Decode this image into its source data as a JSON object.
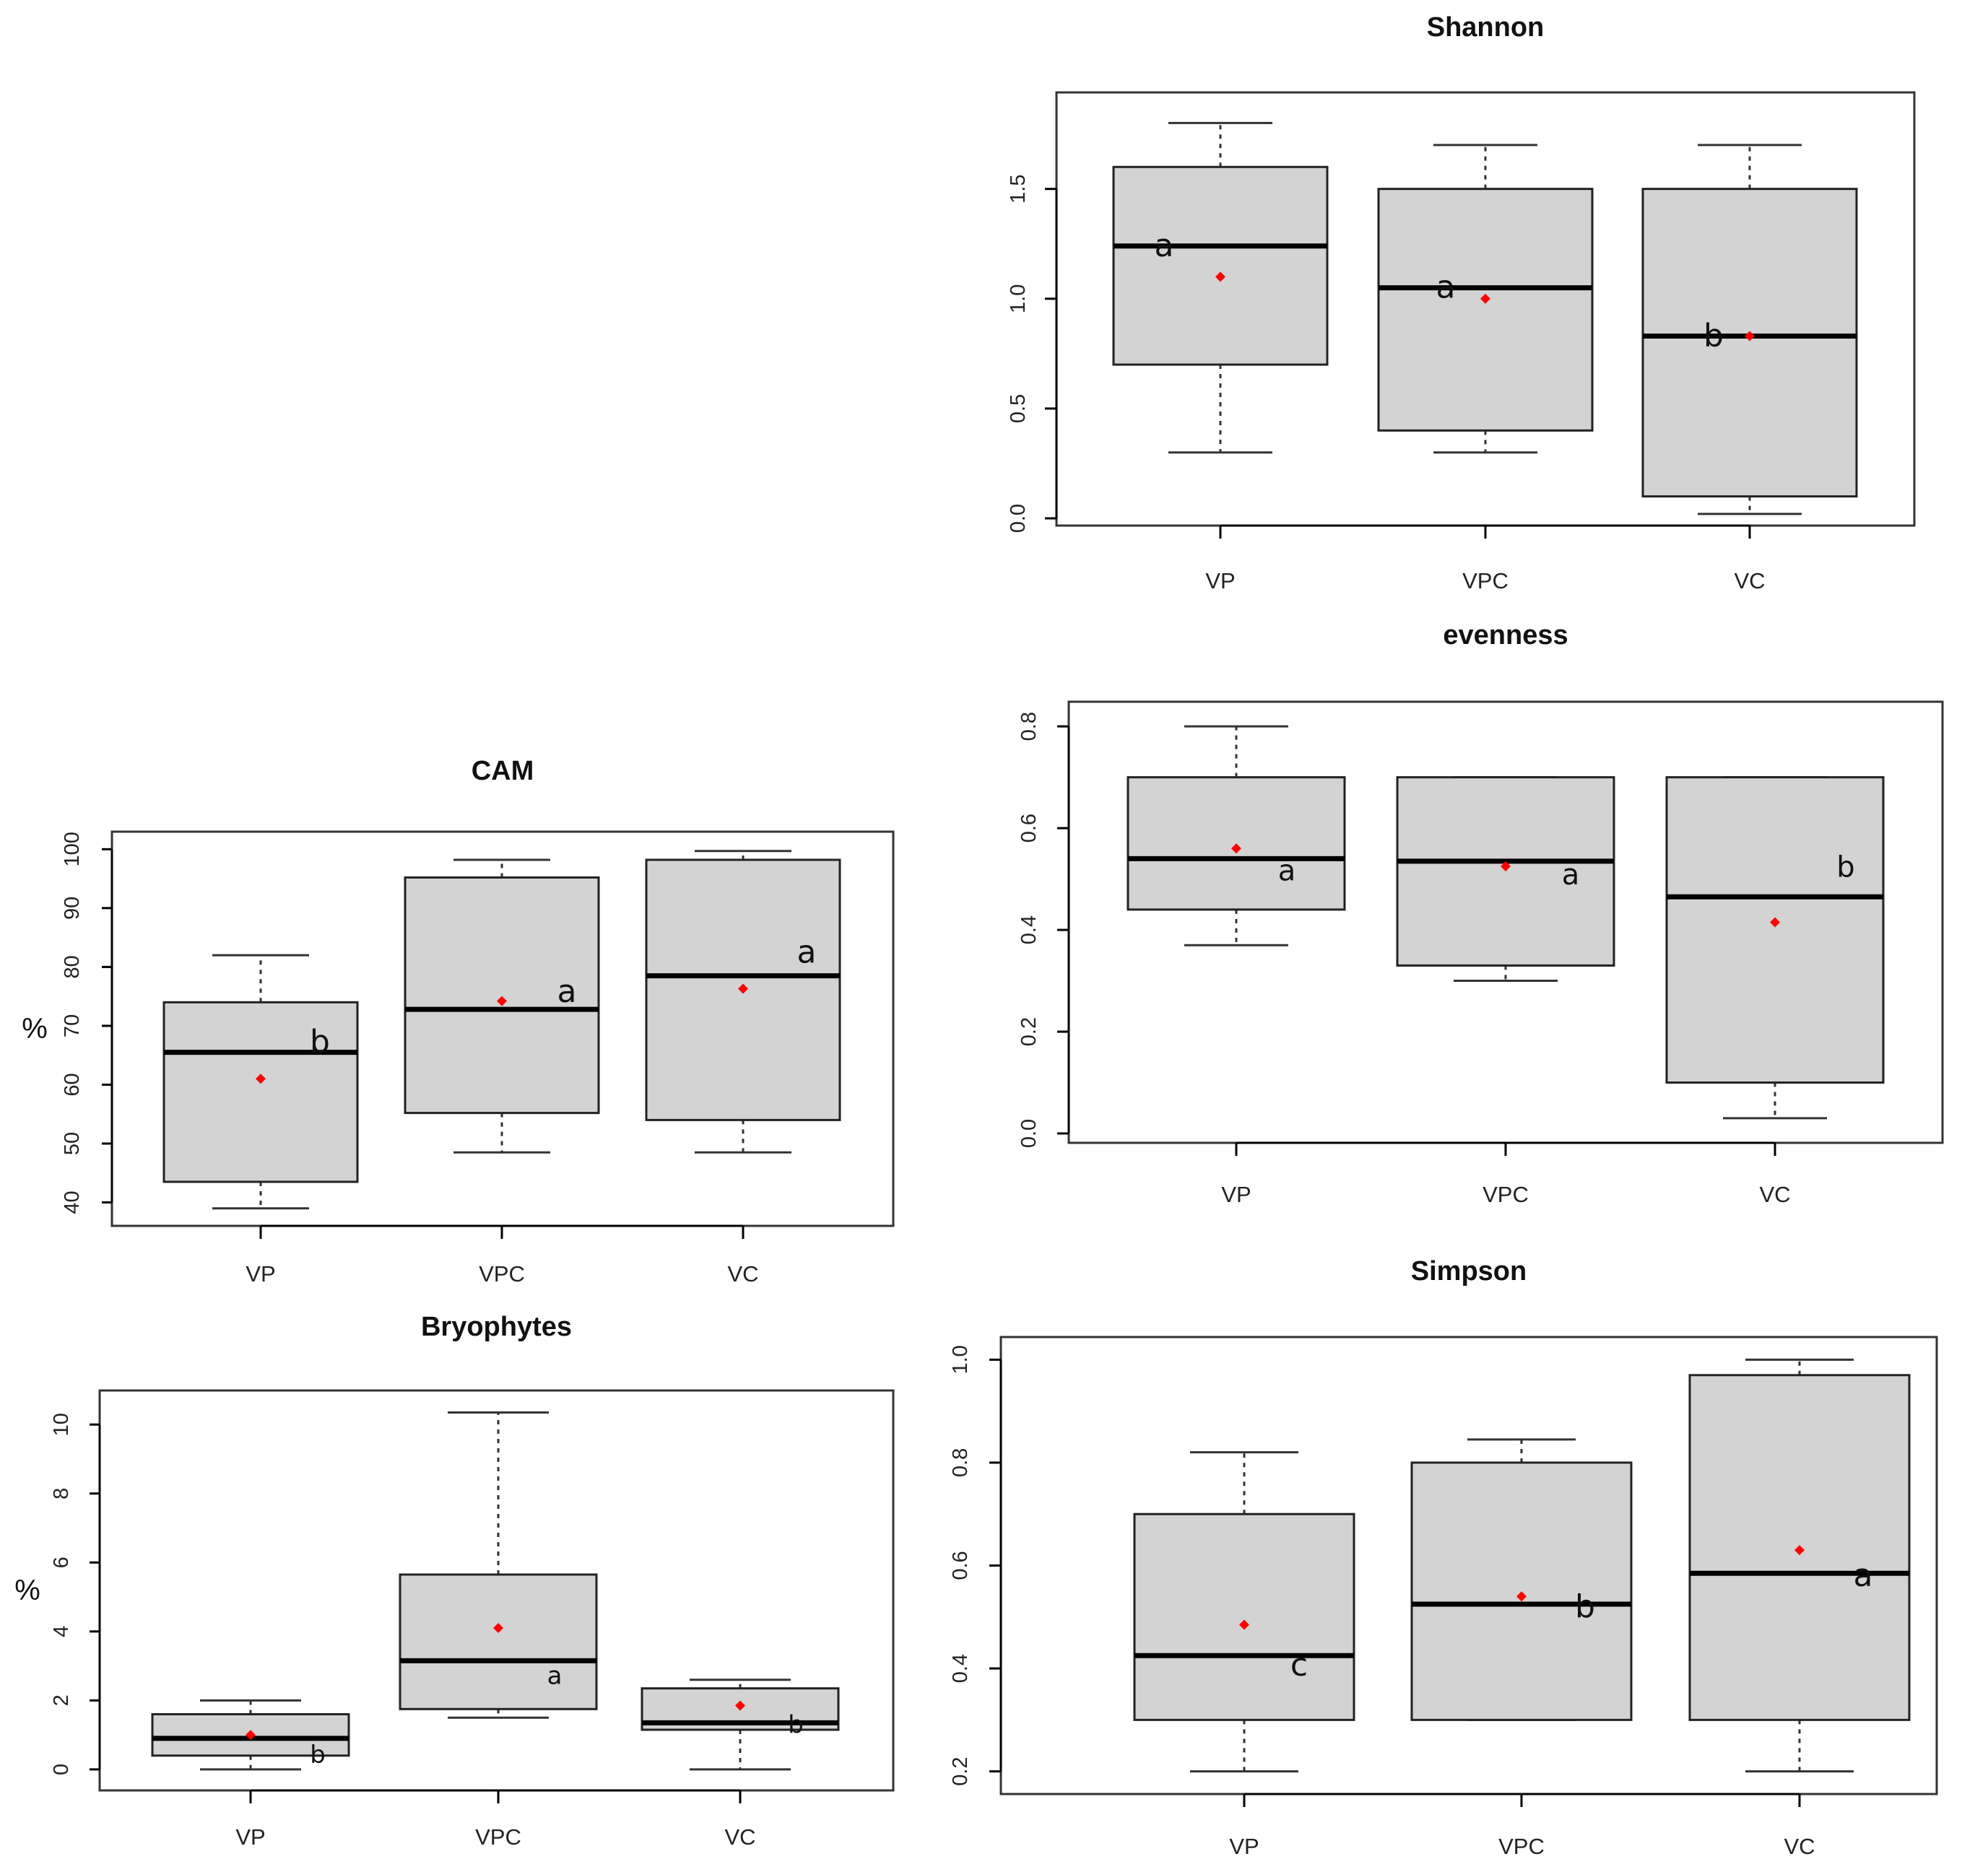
{
  "colors": {
    "box_fill": "#d3d3d3",
    "box_stroke": "#000000",
    "mean_marker": "#ff0000",
    "axis": "#000000"
  },
  "chart_data": [
    {
      "id": "shannon",
      "type": "boxplot",
      "title": "Shannon",
      "xlabel": "",
      "ylabel": "",
      "categories": [
        "VP",
        "VPC",
        "VC"
      ],
      "ylim": [
        0,
        1.9
      ],
      "yticks": [
        0.0,
        0.5,
        1.0,
        1.5
      ],
      "ytick_labels": [
        "0.0",
        "0.5",
        "1.0",
        "1.5"
      ],
      "boxes": [
        {
          "min": 0.3,
          "q1": 0.7,
          "median": 1.24,
          "q3": 1.6,
          "max": 1.8,
          "mean": 1.1,
          "letter": "a"
        },
        {
          "min": 0.3,
          "q1": 0.4,
          "median": 1.05,
          "q3": 1.5,
          "max": 1.7,
          "mean": 1.0,
          "letter": "a"
        },
        {
          "min": 0.02,
          "q1": 0.1,
          "median": 0.83,
          "q3": 1.5,
          "max": 1.7,
          "mean": 0.83,
          "letter": "b"
        }
      ]
    },
    {
      "id": "evenness",
      "type": "boxplot",
      "title": "evenness",
      "xlabel": "",
      "ylabel": "",
      "categories": [
        "VP",
        "VPC",
        "VC"
      ],
      "ylim": [
        0,
        0.83
      ],
      "yticks": [
        0.0,
        0.2,
        0.4,
        0.6,
        0.8
      ],
      "ytick_labels": [
        "0.0",
        "0.2",
        "0.4",
        "0.6",
        "0.8"
      ],
      "boxes": [
        {
          "min": 0.37,
          "q1": 0.44,
          "median": 0.54,
          "q3": 0.7,
          "max": 0.8,
          "mean": 0.56,
          "letter": "a"
        },
        {
          "min": 0.3,
          "q1": 0.33,
          "median": 0.535,
          "q3": 0.7,
          "max": 0.7,
          "mean": 0.525,
          "letter": "a"
        },
        {
          "min": 0.03,
          "q1": 0.1,
          "median": 0.465,
          "q3": 0.7,
          "max": 0.7,
          "mean": 0.415,
          "letter": "b"
        }
      ]
    },
    {
      "id": "cam",
      "type": "boxplot",
      "title": "CAM",
      "xlabel": "",
      "ylabel": "%",
      "categories": [
        "VP",
        "VPC",
        "VC"
      ],
      "ylim": [
        37,
        102
      ],
      "yticks": [
        40,
        50,
        60,
        70,
        80,
        90,
        100
      ],
      "ytick_labels": [
        "40",
        "50",
        "60",
        "70",
        "80",
        "90",
        "100"
      ],
      "boxes": [
        {
          "min": 39,
          "q1": 43.5,
          "median": 65.5,
          "q3": 74,
          "max": 82,
          "mean": 61,
          "letter": "b"
        },
        {
          "min": 48.5,
          "q1": 55.2,
          "median": 72.8,
          "q3": 95.2,
          "max": 98.2,
          "mean": 74.2,
          "letter": "a"
        },
        {
          "min": 48.5,
          "q1": 54,
          "median": 78.5,
          "q3": 98.2,
          "max": 99.7,
          "mean": 76.3,
          "letter": "a"
        }
      ]
    },
    {
      "id": "bryophytes",
      "type": "boxplot",
      "title": "Bryophytes",
      "xlabel": "",
      "ylabel": "%",
      "categories": [
        "VP",
        "VPC",
        "VC"
      ],
      "ylim": [
        -0.4,
        10.8
      ],
      "yticks": [
        0,
        2,
        4,
        6,
        8,
        10
      ],
      "ytick_labels": [
        "0",
        "2",
        "4",
        "6",
        "8",
        "10"
      ],
      "boxes": [
        {
          "min": 0,
          "q1": 0.4,
          "median": 0.9,
          "q3": 1.6,
          "max": 2.0,
          "mean": 1.0,
          "letter": "b"
        },
        {
          "min": 1.5,
          "q1": 1.75,
          "median": 3.15,
          "q3": 5.65,
          "max": 10.35,
          "mean": 4.1,
          "letter": "a"
        },
        {
          "min": 0,
          "q1": 1.15,
          "median": 1.35,
          "q3": 2.35,
          "max": 2.6,
          "mean": 1.85,
          "letter": "b"
        }
      ]
    },
    {
      "id": "simpson",
      "type": "boxplot",
      "title": "Simpson",
      "xlabel": "",
      "ylabel": "",
      "categories": [
        "VP",
        "VPC",
        "VC"
      ],
      "ylim": [
        0.17,
        1.03
      ],
      "yticks": [
        0.2,
        0.4,
        0.6,
        0.8,
        1.0
      ],
      "ytick_labels": [
        "0.2",
        "0.4",
        "0.6",
        "0.8",
        "1.0"
      ],
      "boxes": [
        {
          "min": 0.2,
          "q1": 0.3,
          "median": 0.425,
          "q3": 0.7,
          "max": 0.82,
          "mean": 0.485,
          "letter": "c"
        },
        {
          "min": 0.3,
          "q1": 0.3,
          "median": 0.525,
          "q3": 0.8,
          "max": 0.845,
          "mean": 0.54,
          "letter": "b"
        },
        {
          "min": 0.2,
          "q1": 0.3,
          "median": 0.585,
          "q3": 0.97,
          "max": 1.0,
          "mean": 0.63,
          "letter": "a"
        }
      ]
    }
  ]
}
